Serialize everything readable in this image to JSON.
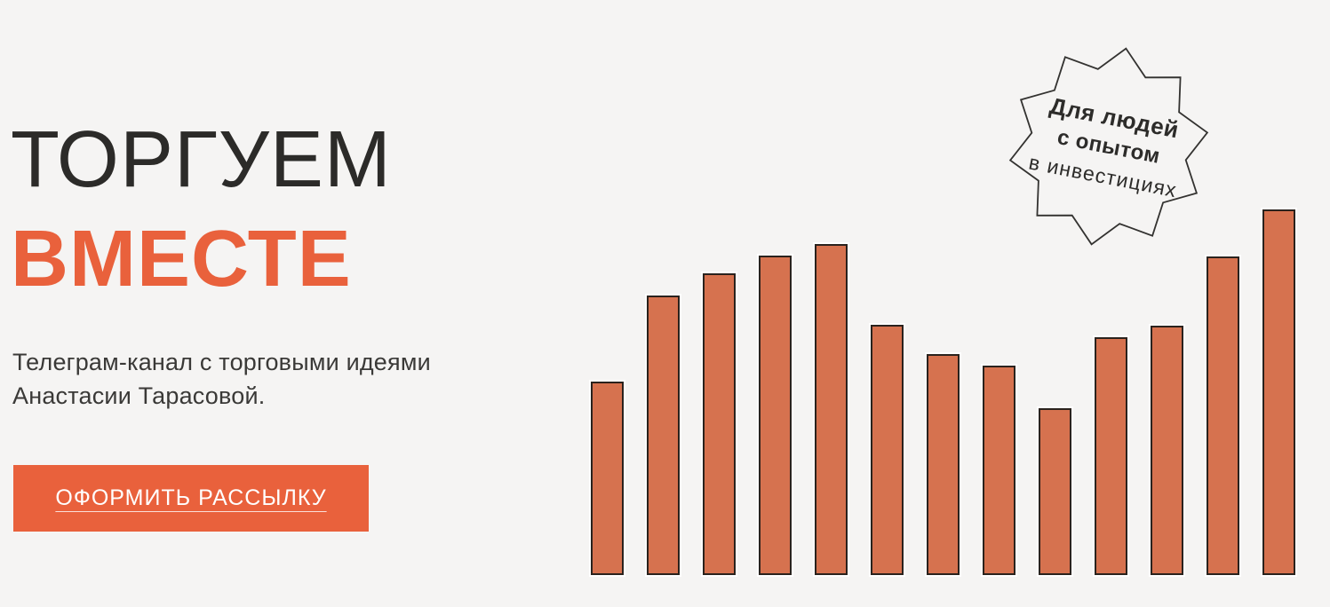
{
  "page": {
    "background_color": "#f5f4f3"
  },
  "hero": {
    "title_line1": "ТОРГУЕМ",
    "title_line2": "ВМЕСТЕ",
    "subtitle_line1": "Телеграм-канал с торговыми идеями",
    "subtitle_line2": "Анастасии Тарасовой.",
    "cta_label": "ОФОРМИТЬ РАССЫЛКУ",
    "colors": {
      "title_dark": "#2c2b29",
      "accent_orange": "#e9613c",
      "button_bg": "#e9613c",
      "button_text": "#ffffff"
    }
  },
  "badge": {
    "line1": "Для людей",
    "line2": "с опытом",
    "line3": "в инвестициях",
    "shape": "starburst",
    "points": 10,
    "outer_radius": 112,
    "inner_radius": 88,
    "phase_deg": -80,
    "text_rotation_deg": 11,
    "outline_color": "#333230",
    "fill_color": "#f5f4f3",
    "text_color": "#2d2c2a"
  },
  "chart_data": {
    "type": "bar",
    "title": "",
    "xlabel": "",
    "ylabel": "",
    "categories": [
      "",
      "",
      "",
      "",
      "",
      "",
      "",
      "",
      "",
      "",
      "",
      "",
      ""
    ],
    "values": [
      218,
      315,
      340,
      360,
      373,
      282,
      249,
      236,
      188,
      268,
      281,
      359,
      412
    ],
    "value_unit": "px",
    "ylim": [
      0,
      430
    ],
    "grid": false,
    "legend": "none",
    "bar_color": "#d6724f",
    "bar_border_color": "#2a221d",
    "bar_outer_glow": "#ffffff"
  }
}
